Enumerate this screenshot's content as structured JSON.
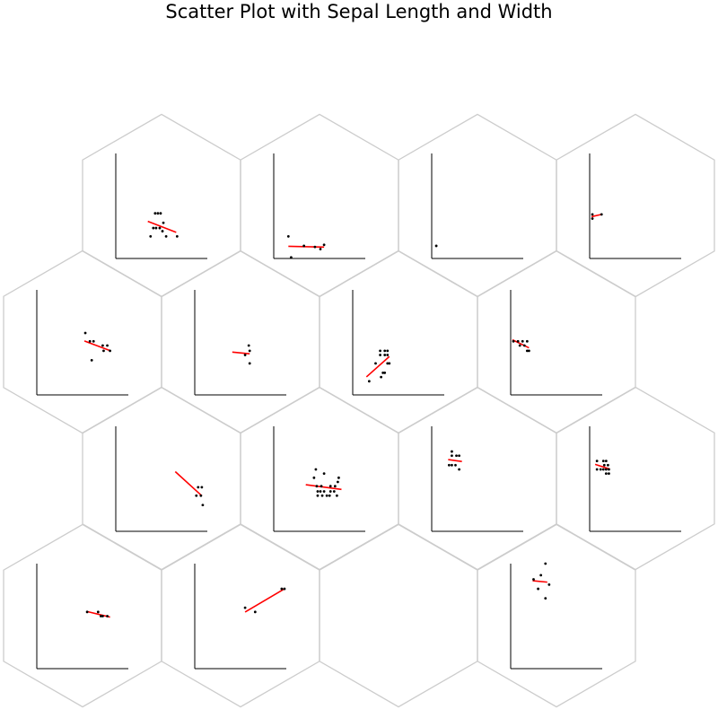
{
  "title": "Scatter Plot with Sepal Length and Width",
  "colors": {
    "hex_edge": "#cccccc",
    "axis": "#000000",
    "point": "#000000",
    "fit_line": "#ff0000"
  },
  "chart_data": {
    "type": "scatter",
    "title": "Scatter Plot with Sepal Length and Width",
    "layout": "hexagonal grid of 4 rows x 4 columns, offset rows",
    "axis_units": "normalized 0-1 within each panel (no ticks or labels shown)",
    "xlim": [
      0,
      1
    ],
    "ylim": [
      0,
      1
    ],
    "grid": false,
    "fit": "linear regression line per panel",
    "panels": [
      {
        "row": 0,
        "col": 0,
        "empty": false,
        "fit_x": [
          0.35,
          0.66
        ],
        "points": [
          [
            0.43,
            0.43
          ],
          [
            0.46,
            0.43
          ],
          [
            0.49,
            0.43
          ],
          [
            0.52,
            0.34
          ],
          [
            0.41,
            0.29
          ],
          [
            0.44,
            0.29
          ],
          [
            0.48,
            0.29
          ],
          [
            0.51,
            0.26
          ],
          [
            0.38,
            0.21
          ],
          [
            0.55,
            0.21
          ],
          [
            0.67,
            0.21
          ]
        ]
      },
      {
        "row": 0,
        "col": 1,
        "empty": false,
        "fit_x": [
          0.16,
          0.55
        ],
        "points": [
          [
            0.16,
            0.21
          ],
          [
            0.33,
            0.12
          ],
          [
            0.45,
            0.11
          ],
          [
            0.51,
            0.09
          ],
          [
            0.55,
            0.13
          ],
          [
            0.19,
            0.01
          ]
        ]
      },
      {
        "row": 0,
        "col": 2,
        "empty": false,
        "fit_x": null,
        "points": [
          [
            0.05,
            0.12
          ]
        ]
      },
      {
        "row": 0,
        "col": 3,
        "empty": false,
        "fit_x": [
          0.02,
          0.13
        ],
        "points": [
          [
            0.03,
            0.42
          ],
          [
            0.13,
            0.42
          ],
          [
            0.03,
            0.38
          ]
        ]
      },
      {
        "row": 1,
        "col": 0,
        "empty": false,
        "fit_x": [
          0.52,
          0.8
        ],
        "points": [
          [
            0.53,
            0.59
          ],
          [
            0.58,
            0.51
          ],
          [
            0.62,
            0.51
          ],
          [
            0.72,
            0.47
          ],
          [
            0.73,
            0.42
          ],
          [
            0.77,
            0.47
          ],
          [
            0.8,
            0.42
          ],
          [
            0.6,
            0.33
          ]
        ]
      },
      {
        "row": 1,
        "col": 1,
        "empty": false,
        "fit_x": [
          0.41,
          0.6
        ],
        "points": [
          [
            0.59,
            0.47
          ],
          [
            0.6,
            0.42
          ],
          [
            0.55,
            0.38
          ],
          [
            0.6,
            0.3
          ]
        ]
      },
      {
        "row": 1,
        "col": 2,
        "empty": false,
        "fit_x": [
          0.15,
          0.4
        ],
        "points": [
          [
            0.3,
            0.42
          ],
          [
            0.35,
            0.42
          ],
          [
            0.38,
            0.42
          ],
          [
            0.3,
            0.38
          ],
          [
            0.35,
            0.38
          ],
          [
            0.38,
            0.38
          ],
          [
            0.25,
            0.3
          ],
          [
            0.38,
            0.3
          ],
          [
            0.4,
            0.3
          ],
          [
            0.33,
            0.21
          ],
          [
            0.35,
            0.21
          ],
          [
            0.31,
            0.17
          ],
          [
            0.18,
            0.13
          ]
        ]
      },
      {
        "row": 1,
        "col": 3,
        "empty": false,
        "fit_x": [
          0.02,
          0.2
        ],
        "points": [
          [
            0.03,
            0.51
          ],
          [
            0.08,
            0.51
          ],
          [
            0.13,
            0.51
          ],
          [
            0.18,
            0.51
          ],
          [
            0.1,
            0.47
          ],
          [
            0.15,
            0.47
          ],
          [
            0.18,
            0.42
          ],
          [
            0.2,
            0.42
          ]
        ]
      },
      {
        "row": 2,
        "col": 0,
        "empty": false,
        "fit_x": [
          0.65,
          0.94
        ],
        "points": [
          [
            0.9,
            0.42
          ],
          [
            0.94,
            0.42
          ],
          [
            0.88,
            0.34
          ],
          [
            0.93,
            0.34
          ],
          [
            0.95,
            0.25
          ]
        ]
      },
      {
        "row": 2,
        "col": 1,
        "empty": false,
        "fit_x": [
          0.35,
          0.74
        ],
        "points": [
          [
            0.46,
            0.59
          ],
          [
            0.55,
            0.55
          ],
          [
            0.71,
            0.51
          ],
          [
            0.44,
            0.51
          ],
          [
            0.7,
            0.47
          ],
          [
            0.47,
            0.43
          ],
          [
            0.52,
            0.43
          ],
          [
            0.62,
            0.43
          ],
          [
            0.67,
            0.43
          ],
          [
            0.48,
            0.38
          ],
          [
            0.51,
            0.38
          ],
          [
            0.55,
            0.38
          ],
          [
            0.62,
            0.38
          ],
          [
            0.66,
            0.38
          ],
          [
            0.48,
            0.34
          ],
          [
            0.53,
            0.34
          ],
          [
            0.58,
            0.34
          ],
          [
            0.61,
            0.34
          ],
          [
            0.69,
            0.34
          ]
        ]
      },
      {
        "row": 2,
        "col": 2,
        "empty": false,
        "fit_x": [
          0.18,
          0.33
        ],
        "points": [
          [
            0.22,
            0.76
          ],
          [
            0.22,
            0.72
          ],
          [
            0.27,
            0.72
          ],
          [
            0.3,
            0.72
          ],
          [
            0.19,
            0.63
          ],
          [
            0.22,
            0.63
          ],
          [
            0.26,
            0.63
          ],
          [
            0.3,
            0.59
          ]
        ]
      },
      {
        "row": 2,
        "col": 3,
        "empty": false,
        "fit_x": [
          0.06,
          0.22
        ],
        "points": [
          [
            0.15,
            0.67
          ],
          [
            0.18,
            0.67
          ],
          [
            0.08,
            0.67
          ],
          [
            0.16,
            0.63
          ],
          [
            0.2,
            0.63
          ],
          [
            0.08,
            0.59
          ],
          [
            0.12,
            0.59
          ],
          [
            0.15,
            0.59
          ],
          [
            0.18,
            0.59
          ],
          [
            0.21,
            0.59
          ],
          [
            0.18,
            0.55
          ],
          [
            0.21,
            0.55
          ]
        ]
      },
      {
        "row": 3,
        "col": 0,
        "empty": false,
        "fit_x": [
          0.55,
          0.8
        ],
        "points": [
          [
            0.55,
            0.54
          ],
          [
            0.67,
            0.54
          ],
          [
            0.7,
            0.5
          ],
          [
            0.77,
            0.5
          ],
          [
            0.72,
            0.5
          ]
        ]
      },
      {
        "row": 3,
        "col": 1,
        "empty": false,
        "fit_x": [
          0.55,
          0.97
        ],
        "points": [
          [
            0.95,
            0.76
          ],
          [
            0.98,
            0.76
          ],
          [
            0.55,
            0.58
          ],
          [
            0.66,
            0.54
          ]
        ]
      },
      {
        "row": 3,
        "col": 2,
        "empty": true,
        "fit_x": null,
        "points": []
      },
      {
        "row": 3,
        "col": 3,
        "empty": false,
        "fit_x": [
          0.24,
          0.4
        ],
        "points": [
          [
            0.38,
            1.0
          ],
          [
            0.33,
            0.89
          ],
          [
            0.25,
            0.85
          ],
          [
            0.42,
            0.8
          ],
          [
            0.3,
            0.76
          ],
          [
            0.38,
            0.67
          ]
        ]
      }
    ]
  }
}
